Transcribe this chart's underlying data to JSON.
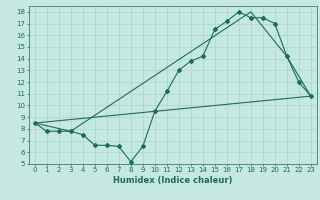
{
  "xlabel": "Humidex (Indice chaleur)",
  "xlim": [
    -0.5,
    23.5
  ],
  "ylim": [
    5,
    18.5
  ],
  "xticks": [
    0,
    1,
    2,
    3,
    4,
    5,
    6,
    7,
    8,
    9,
    10,
    11,
    12,
    13,
    14,
    15,
    16,
    17,
    18,
    19,
    20,
    21,
    22,
    23
  ],
  "yticks": [
    5,
    6,
    7,
    8,
    9,
    10,
    11,
    12,
    13,
    14,
    15,
    16,
    17,
    18
  ],
  "bg_color": "#c5e8e2",
  "grid_color": "#a8d4cc",
  "line_color": "#1e6b5a",
  "line1_x": [
    0,
    1,
    2,
    3,
    4,
    5,
    6,
    7,
    8,
    9,
    10,
    11,
    12,
    13,
    14,
    15,
    16,
    17,
    18,
    19,
    20,
    21,
    22,
    23
  ],
  "line1_y": [
    8.5,
    7.8,
    7.8,
    7.8,
    7.5,
    6.6,
    6.6,
    6.5,
    5.2,
    6.5,
    9.5,
    11.2,
    13.0,
    13.8,
    14.2,
    16.5,
    17.2,
    18.0,
    17.5,
    17.5,
    17.0,
    14.2,
    12.0,
    10.8
  ],
  "line2_x": [
    0,
    23
  ],
  "line2_y": [
    8.5,
    10.8
  ],
  "line3_x": [
    0,
    3,
    18,
    21,
    23
  ],
  "line3_y": [
    8.5,
    7.8,
    18.0,
    14.2,
    10.8
  ]
}
